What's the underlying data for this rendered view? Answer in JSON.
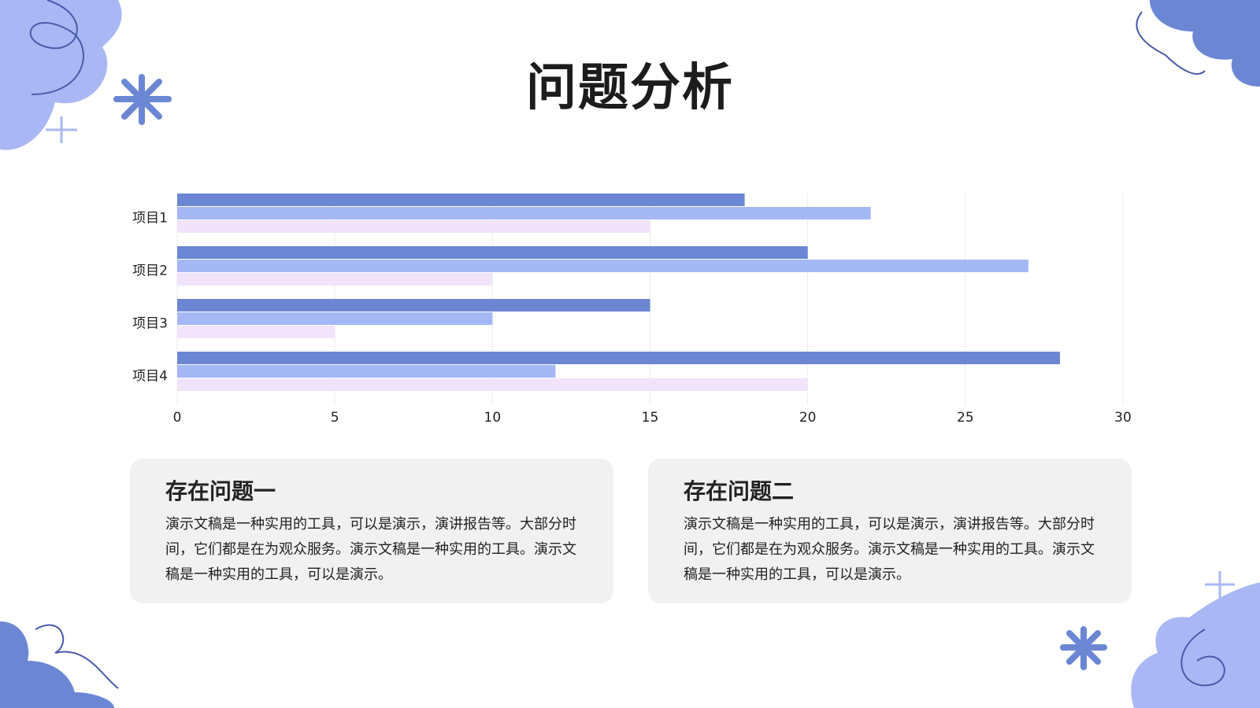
{
  "title": "问题分析",
  "chart_data": {
    "type": "hbar",
    "categories": [
      "项目1",
      "项目2",
      "项目3",
      "项目4"
    ],
    "series": [
      {
        "color": "#6b87d4",
        "values": [
          18,
          20,
          15,
          28
        ]
      },
      {
        "color": "#a4b8f6",
        "values": [
          22,
          27,
          10,
          12
        ]
      },
      {
        "color": "#f1e3f9",
        "values": [
          15,
          10,
          5,
          20
        ]
      }
    ],
    "xlim": [
      0,
      30
    ],
    "xticks": [
      0,
      5,
      10,
      15,
      20,
      25,
      30
    ],
    "grid": true
  },
  "cards": [
    {
      "heading": "存在问题一",
      "body": "演示文稿是一种实用的工具，可以是演示，演讲报告等。大部分时间，它们都是在为观众服务。演示文稿是一种实用的工具。演示文稿是一种实用的工具，可以是演示。"
    },
    {
      "heading": "存在问题二",
      "body": "演示文稿是一种实用的工具，可以是演示，演讲报告等。大部分时间，它们都是在为观众服务。演示文稿是一种实用的工具。演示文稿是一种实用的工具，可以是演示。"
    }
  ]
}
